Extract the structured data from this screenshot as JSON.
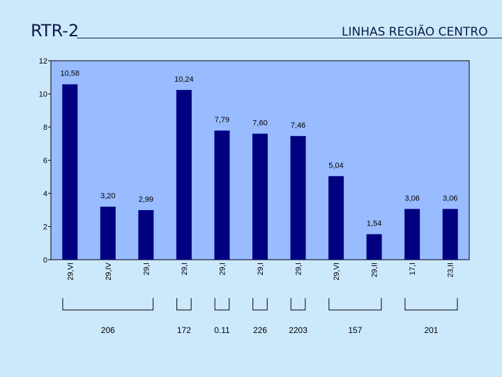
{
  "header": {
    "title": "RTR-2",
    "subtitle": "LINHAS REGIÃO CENTRO"
  },
  "colors": {
    "background": "#cce9fc",
    "plot_area": "#99bbff",
    "bar": "#000080"
  },
  "chart_data": {
    "type": "bar",
    "categories": [
      "29,VI",
      "29,IV",
      "29,I",
      "29,I",
      "29,I",
      "29,I",
      "29,I",
      "29,VI",
      "29,II",
      "17,I",
      "23,II"
    ],
    "values": [
      10.58,
      3.2,
      2.99,
      10.24,
      7.79,
      7.6,
      7.46,
      5.04,
      1.54,
      3.06,
      3.06
    ],
    "data_labels": [
      "10,58",
      "3,20",
      "2,99",
      "10,24",
      "7,79",
      "7,60",
      "7,46",
      "5,04",
      "1,54",
      "3,06",
      "3,06"
    ],
    "ylim": [
      0,
      12
    ],
    "yticks": [
      0,
      2,
      4,
      6,
      8,
      10,
      12
    ],
    "grid": false,
    "groups": [
      {
        "label": "206",
        "start": 0,
        "end": 2
      },
      {
        "label": "172",
        "start": 3,
        "end": 3
      },
      {
        "label": "0.11",
        "start": 4,
        "end": 4
      },
      {
        "label": "226",
        "start": 5,
        "end": 5
      },
      {
        "label": "2203",
        "start": 6,
        "end": 6
      },
      {
        "label": "157",
        "start": 7,
        "end": 8
      },
      {
        "label": "201",
        "start": 9,
        "end": 10
      }
    ]
  }
}
